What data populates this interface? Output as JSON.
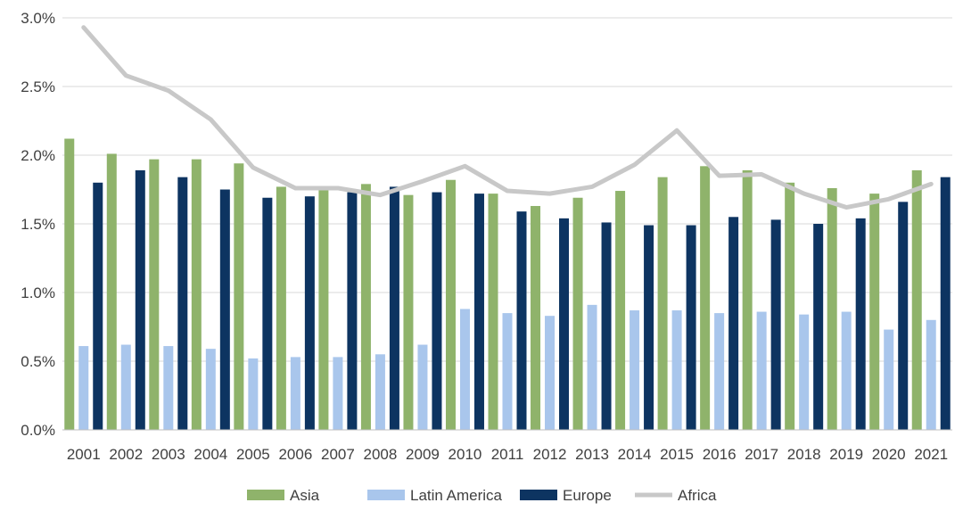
{
  "chart_data": {
    "type": "bar",
    "title": "",
    "xlabel": "",
    "ylabel": "",
    "ylim": [
      0,
      3.0
    ],
    "y_ticks": [
      0,
      0.5,
      1.0,
      1.5,
      2.0,
      2.5,
      3.0
    ],
    "y_tick_labels": [
      "0.0%",
      "0.5%",
      "1.0%",
      "1.5%",
      "2.0%",
      "2.5%",
      "3.0%"
    ],
    "grid": true,
    "legend_position": "bottom",
    "categories": [
      "2001",
      "2002",
      "2003",
      "2004",
      "2005",
      "2006",
      "2007",
      "2008",
      "2009",
      "2010",
      "2011",
      "2012",
      "2013",
      "2014",
      "2015",
      "2016",
      "2017",
      "2018",
      "2019",
      "2020",
      "2021"
    ],
    "series": [
      {
        "name": "Asia",
        "kind": "bar",
        "color": "#8FB36B",
        "values": [
          2.12,
          2.01,
          1.97,
          1.97,
          1.94,
          1.77,
          1.75,
          1.79,
          1.71,
          1.82,
          1.72,
          1.63,
          1.69,
          1.74,
          1.84,
          1.92,
          1.89,
          1.8,
          1.76,
          1.72,
          1.89
        ]
      },
      {
        "name": "Latin America",
        "kind": "bar",
        "color": "#A9C6EC",
        "values": [
          0.61,
          0.62,
          0.61,
          0.59,
          0.52,
          0.53,
          0.53,
          0.55,
          0.62,
          0.88,
          0.85,
          0.83,
          0.91,
          0.87,
          0.87,
          0.85,
          0.86,
          0.84,
          0.86,
          0.73,
          0.8
        ]
      },
      {
        "name": "Europe",
        "kind": "bar",
        "color": "#0D3461",
        "values": [
          1.8,
          1.89,
          1.84,
          1.75,
          1.69,
          1.7,
          1.73,
          1.77,
          1.73,
          1.72,
          1.59,
          1.54,
          1.51,
          1.49,
          1.49,
          1.55,
          1.53,
          1.5,
          1.54,
          1.66,
          1.84
        ]
      },
      {
        "name": "Africa",
        "kind": "line",
        "color": "#C8C8C8",
        "values": [
          2.93,
          2.58,
          2.47,
          2.26,
          1.91,
          1.76,
          1.76,
          1.71,
          1.81,
          1.92,
          1.74,
          1.72,
          1.77,
          1.93,
          2.18,
          1.85,
          1.86,
          1.72,
          1.62,
          1.68,
          1.79
        ]
      }
    ]
  }
}
